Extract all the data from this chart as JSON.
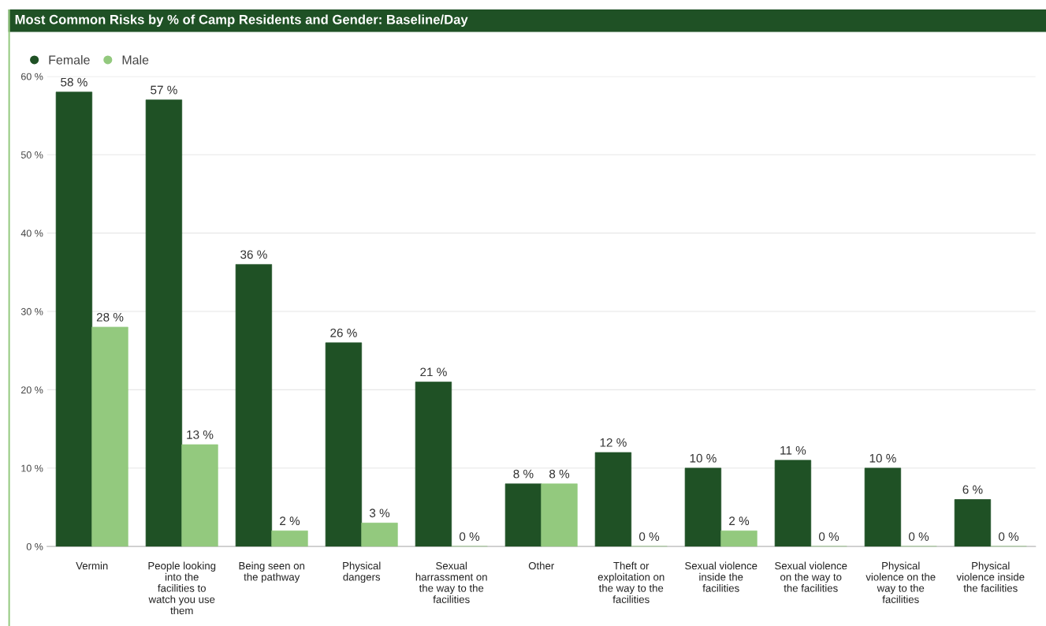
{
  "chart_data": {
    "type": "bar",
    "title": "Most Common Risks by % of Camp Residents and Gender: Baseline/Day",
    "categories": [
      "Vermin",
      "People looking\ninto the\nfacilities to\nwatch you use\nthem",
      "Being seen on\nthe pathway",
      "Physical\ndangers",
      "Sexual\nharrassment on\nthe way to the\nfacilities",
      "Other",
      "Theft or\nexploitation on\nthe way to the\nfacilities",
      "Sexual violence\ninside the\nfacilities",
      "Sexual violence\non the way to\nthe facilities",
      "Physical\nviolence on the\nway to the\nfacilities",
      "Physical\nviolence inside\nthe facilities"
    ],
    "series": [
      {
        "name": "Female",
        "color": "#1f5125",
        "values": [
          58,
          57,
          36,
          26,
          21,
          8,
          12,
          10,
          11,
          10,
          6
        ],
        "value_labels": [
          "58 %",
          "57 %",
          "36 %",
          "26 %",
          "21 %",
          "8 %",
          "12 %",
          "10 %",
          "11 %",
          "10 %",
          "6 %"
        ]
      },
      {
        "name": "Male",
        "color": "#93c97e",
        "values": [
          28,
          13,
          2,
          3,
          0,
          8,
          0,
          2,
          0,
          0,
          0
        ],
        "value_labels": [
          "28 %",
          "13 %",
          "2 %",
          "3 %",
          "0 %",
          "8 %",
          "0 %",
          "2 %",
          "0 %",
          "0 %",
          "0 %"
        ]
      }
    ],
    "ylim": [
      0,
      60
    ],
    "yticks": [
      {
        "value": 0,
        "label": "0 %"
      },
      {
        "value": 10,
        "label": "10 %"
      },
      {
        "value": 20,
        "label": "20 %"
      },
      {
        "value": 30,
        "label": "30 %"
      },
      {
        "value": 40,
        "label": "40 %"
      },
      {
        "value": 50,
        "label": "50 %"
      },
      {
        "value": 60,
        "label": "60 %"
      }
    ],
    "grid": "y",
    "legend": "top left"
  }
}
